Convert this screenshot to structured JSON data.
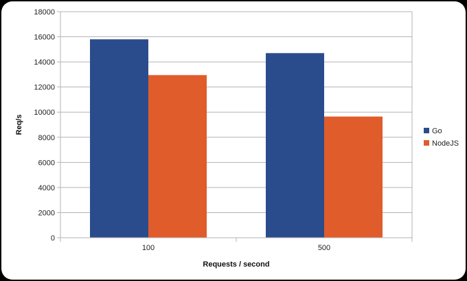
{
  "chart_data": {
    "type": "bar",
    "categories": [
      "100",
      "500"
    ],
    "series": [
      {
        "name": "Go",
        "values": [
          15800,
          14700
        ],
        "color": "#2b4c8c"
      },
      {
        "name": "NodeJS",
        "values": [
          12950,
          9650
        ],
        "color": "#e05c2b"
      }
    ],
    "xlabel": "Requests / second",
    "ylabel": "Req/s",
    "ylim": [
      0,
      18000
    ],
    "yticks": [
      0,
      2000,
      4000,
      6000,
      8000,
      10000,
      12000,
      14000,
      16000,
      18000
    ],
    "grid": true,
    "legend_position": "right"
  }
}
